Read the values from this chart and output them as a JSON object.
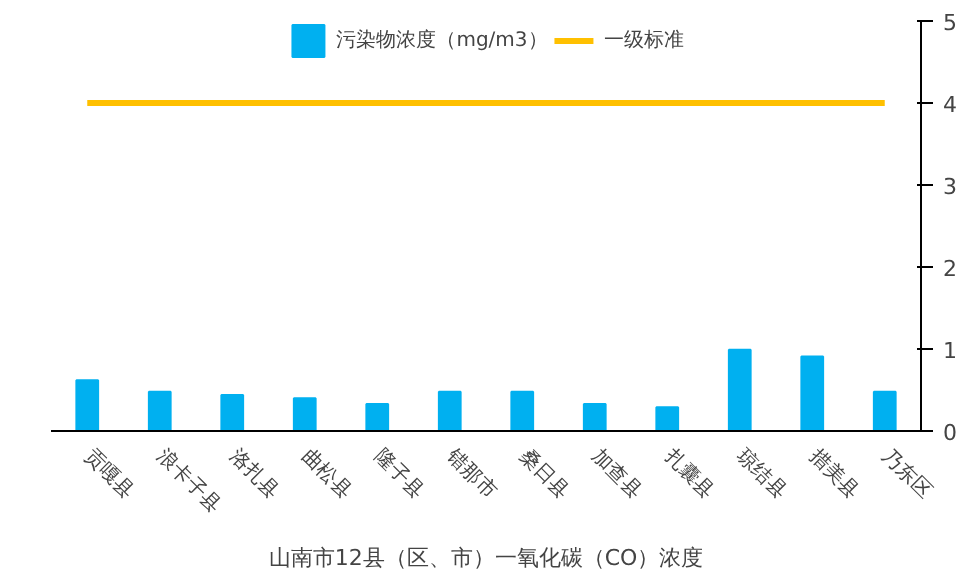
{
  "chart_data": {
    "type": "bar",
    "title": "山南市12县（区、市）一氧化碳（CO）浓度",
    "categories": [
      "贡嘎县",
      "浪卡子县",
      "洛扎县",
      "曲松县",
      "隆子县",
      "错那市",
      "桑日县",
      "加查县",
      "扎囊县",
      "琼结县",
      "措美县",
      "乃东区"
    ],
    "series": [
      {
        "name": "污染物浓度（mg/m3）",
        "color": "#00b0f0",
        "values": [
          0.62,
          0.48,
          0.44,
          0.4,
          0.33,
          0.48,
          0.48,
          0.33,
          0.29,
          0.99,
          0.91,
          0.48
        ]
      },
      {
        "name": "一级标准",
        "type": "line",
        "color": "#ffc000",
        "values": [
          4,
          4,
          4,
          4,
          4,
          4,
          4,
          4,
          4,
          4,
          4,
          4
        ]
      }
    ],
    "ylim": [
      0,
      5
    ],
    "yticks": [
      0,
      1,
      2,
      3,
      4,
      5
    ],
    "grid": false,
    "legend": "top"
  }
}
